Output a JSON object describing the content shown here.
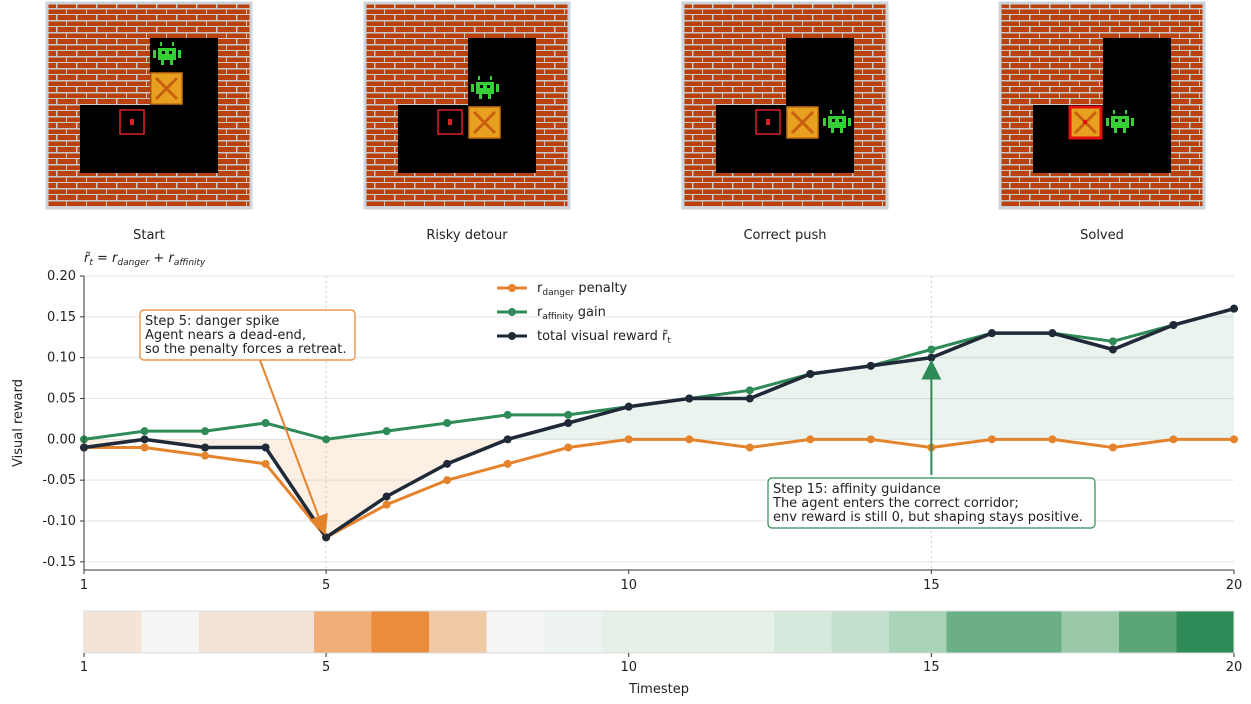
{
  "panels": [
    {
      "caption": "Start",
      "agent": [
        3,
        1
      ],
      "box": [
        3,
        2
      ],
      "target": [
        2,
        3
      ]
    },
    {
      "caption": "Risky detour",
      "agent": [
        3,
        2
      ],
      "box": [
        3,
        3
      ],
      "target": [
        2,
        3
      ]
    },
    {
      "caption": "Correct push",
      "agent": [
        4,
        3
      ],
      "box": [
        3,
        3
      ],
      "target": [
        2,
        3
      ]
    },
    {
      "caption": "Solved",
      "agent": [
        3,
        3
      ],
      "box": [
        2,
        3
      ],
      "target": [
        2,
        3
      ]
    }
  ],
  "chart_data": {
    "type": "line",
    "formula": "r̃_{t} = r_{danger} + r_{affinity}",
    "ylabel": "Visual reward",
    "xlabel": "Timestep",
    "x": [
      1,
      2,
      3,
      4,
      5,
      6,
      7,
      8,
      9,
      10,
      11,
      12,
      13,
      14,
      15,
      16,
      17,
      18,
      19,
      20
    ],
    "series": [
      {
        "name": "r_{danger} penalty",
        "color": "#e5832c",
        "values": [
          -0.01,
          -0.01,
          -0.02,
          -0.03,
          -0.12,
          -0.08,
          -0.05,
          -0.03,
          -0.01,
          0,
          0,
          -0.01,
          0,
          0,
          -0.01,
          0,
          0,
          -0.01,
          0,
          0
        ]
      },
      {
        "name": "r_{affinity} gain",
        "color": "#2e8b57",
        "values": [
          0,
          0.01,
          0.01,
          0.02,
          0,
          0.01,
          0.02,
          0.03,
          0.03,
          0.04,
          0.05,
          0.06,
          0.08,
          0.09,
          0.11,
          0.13,
          0.13,
          0.12,
          0.14,
          0.16
        ]
      },
      {
        "name": "total visual reward r̃_{t}",
        "color": "#1f2937",
        "values": [
          -0.01,
          0,
          -0.01,
          -0.01,
          -0.12,
          -0.07,
          -0.03,
          0,
          0.02,
          0.04,
          0.05,
          0.05,
          0.08,
          0.09,
          0.1,
          0.13,
          0.13,
          0.11,
          0.14,
          0.16
        ]
      }
    ],
    "xlim": [
      1,
      20
    ],
    "xticks": [
      1,
      5,
      10,
      15,
      20
    ],
    "ylim": [
      -0.16,
      0.2
    ],
    "yticks": [
      {
        "value": -0.15,
        "label": "-0.15"
      },
      {
        "value": -0.1,
        "label": "-0.10"
      },
      {
        "value": -0.05,
        "label": "-0.05"
      },
      {
        "value": 0,
        "label": "0.00"
      },
      {
        "value": 0.05,
        "label": "0.05"
      },
      {
        "value": 0.1,
        "label": "0.10"
      },
      {
        "value": 0.15,
        "label": "0.15"
      },
      {
        "value": 0.2,
        "label": "0.20"
      }
    ],
    "grid": true,
    "legend": "top-center",
    "markers": [
      5,
      15
    ],
    "annotations": [
      {
        "x": 5,
        "y": -0.12,
        "color": "#e5832c",
        "lines": [
          "Step 5: danger spike",
          "Agent nears a dead-end,",
          "so the penalty forces a retreat."
        ]
      },
      {
        "x": 15,
        "y": 0.1,
        "color": "#2e8b57",
        "lines": [
          "Step 15: affinity guidance",
          "The agent enters the correct corridor;",
          "env reward is still 0, but shaping stays positive."
        ]
      }
    ],
    "strip_colors": [
      "#f4e3d6",
      "#f5f5f5",
      "#f4e3d6",
      "#f4e3d6",
      "#f0ae76",
      "#e98d3c",
      "#f0c8a5",
      "#f5f5f5",
      "#edf4ef",
      "#e5f0e9",
      "#e5f0e9",
      "#e5f0e9",
      "#d5eadd",
      "#c3e1ce",
      "#a9d3b8",
      "#6caf87",
      "#6caf87",
      "#99c9a8",
      "#5aa476",
      "#2e8b57"
    ]
  }
}
